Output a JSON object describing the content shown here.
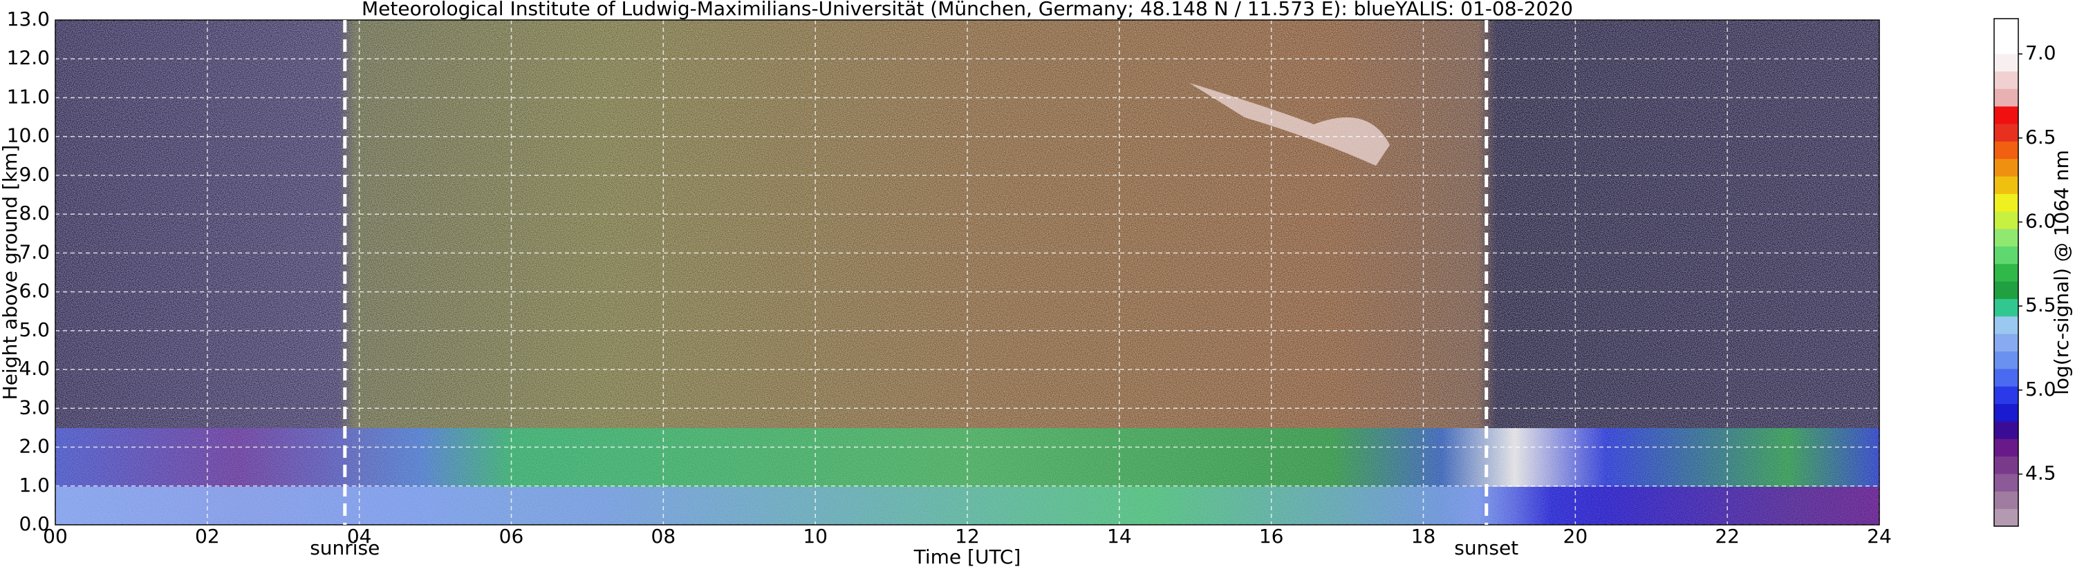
{
  "chart_data": {
    "type": "heatmap",
    "title": "Meteorological Institute of Ludwig-Maximilians-Universität (München, Germany; 48.148 N / 11.573 E):    blueYALIS: 01-08-2020",
    "xlabel": "Time [UTC]",
    "ylabel": "Height above ground [km]",
    "xlim": [
      0,
      24
    ],
    "xticks": [
      {
        "value": 0,
        "label": "00"
      },
      {
        "value": 2,
        "label": "02"
      },
      {
        "value": 4,
        "label": "04"
      },
      {
        "value": 6,
        "label": "06"
      },
      {
        "value": 8,
        "label": "08"
      },
      10,
      12,
      14,
      16,
      18,
      20,
      22,
      24
    ],
    "ylim": [
      0,
      13
    ],
    "yticks": [
      {
        "value": 0,
        "label": "0.0"
      },
      {
        "value": 1,
        "label": "1.0"
      },
      {
        "value": 2,
        "label": "2.0"
      },
      {
        "value": 3,
        "label": "3.0"
      },
      {
        "value": 4,
        "label": "4.0"
      },
      {
        "value": 5,
        "label": "5.0"
      },
      {
        "value": 6,
        "label": "6.0"
      },
      {
        "value": 7,
        "label": "7.0"
      },
      {
        "value": 8,
        "label": "8.0"
      },
      {
        "value": 9,
        "label": "9.0"
      },
      {
        "value": 10,
        "label": "10.0"
      },
      {
        "value": 11,
        "label": "11.0"
      },
      {
        "value": 12,
        "label": "12.0"
      },
      {
        "value": 13,
        "label": "13.0"
      }
    ],
    "grid": true,
    "annotations": [
      {
        "text": "sunrise",
        "x": 3.81
      },
      {
        "text": "sunset",
        "x": 18.83
      }
    ],
    "colorbar": {
      "label": "log(rc-signal) @ 1064 nm",
      "clim": [
        4.19,
        7.21
      ],
      "ticks": [
        4.5,
        {
          "value": 5,
          "label": "5.0"
        },
        5.5,
        {
          "value": 6,
          "label": "6.0"
        },
        6.5,
        {
          "value": 7,
          "label": "7.0"
        }
      ],
      "colors": [
        "#b49ab0",
        "#a07ca0",
        "#8c5a96",
        "#7a3a8c",
        "#6a1a88",
        "#3a0c96",
        "#1a1ad0",
        "#2a3ae8",
        "#4a6af0",
        "#6a90f0",
        "#88aaf0",
        "#9ac8f0",
        "#30c890",
        "#20a040",
        "#30b848",
        "#60d870",
        "#90e870",
        "#c8f040",
        "#f0f020",
        "#f0c010",
        "#f09010",
        "#f06010",
        "#e83020",
        "#f01010",
        "#e8b0b0",
        "#f0d0d0",
        "#f8f0f0",
        "#ffffff",
        "#ffffff"
      ]
    }
  }
}
